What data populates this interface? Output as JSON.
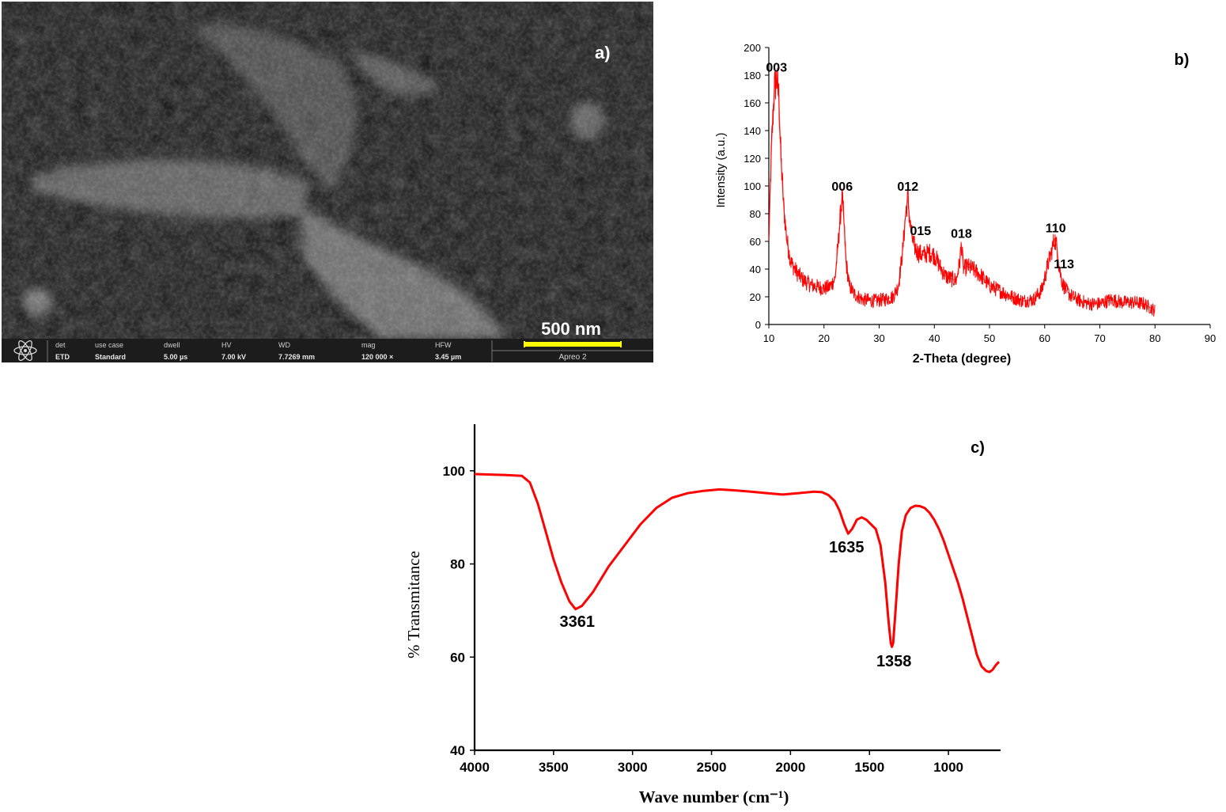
{
  "panels": {
    "a_label": "a)",
    "b_label": "b)",
    "c_label": "c)"
  },
  "sem": {
    "scale_bar": "500 nm",
    "info_headers": [
      "det",
      "use case",
      "dwell",
      "HV",
      "WD",
      "mag",
      "HFW"
    ],
    "info_values": [
      "ETD",
      "Standard",
      "5.00 µs",
      "7.00 kV",
      "7.7269 mm",
      "120 000 ×",
      "3.45 µm"
    ],
    "instrument": "Apreo 2",
    "colors": {
      "bar": "#ffff00",
      "info_bg": "#1c1c1c",
      "info_text": "#d8d8d8"
    }
  },
  "chart_data": [
    {
      "type": "line",
      "panel": "b)",
      "xlabel": "2-Theta (degree)",
      "ylabel": "Intensity (a.u.)",
      "xlim": [
        10,
        90
      ],
      "ylim": [
        0,
        200
      ],
      "xticks": [
        10,
        20,
        30,
        40,
        50,
        60,
        70,
        80,
        90
      ],
      "yticks": [
        0,
        20,
        40,
        60,
        80,
        100,
        120,
        140,
        160,
        180,
        200
      ],
      "grid": false,
      "color": "#ff0000",
      "noisy": true,
      "x": [
        10.0,
        10.5,
        11.0,
        11.4,
        11.8,
        12.2,
        12.7,
        13.3,
        14.0,
        15.0,
        16.0,
        17.0,
        18.0,
        19.0,
        20.0,
        21.0,
        22.0,
        22.6,
        23.0,
        23.3,
        23.6,
        24.0,
        24.6,
        25.5,
        27.0,
        29.0,
        31.0,
        32.5,
        33.5,
        34.3,
        34.8,
        35.2,
        35.6,
        36.2,
        37.0,
        38.0,
        39.0,
        40.0,
        41.0,
        42.0,
        43.0,
        44.0,
        44.6,
        44.9,
        45.3,
        46.0,
        47.0,
        48.5,
        50.0,
        52.0,
        54.0,
        56.0,
        58.0,
        59.5,
        60.5,
        61.2,
        61.8,
        62.2,
        62.6,
        63.2,
        64.0,
        65.0,
        66.5,
        68.0,
        70.0,
        72.0,
        74.0,
        76.0,
        78.0,
        80.0
      ],
      "y": [
        60,
        130,
        170,
        178,
        165,
        120,
        85,
        60,
        45,
        38,
        33,
        30,
        28,
        27,
        26,
        27,
        33,
        60,
        80,
        92,
        75,
        45,
        28,
        22,
        18,
        17,
        18,
        20,
        28,
        55,
        80,
        92,
        72,
        58,
        52,
        50,
        52,
        50,
        42,
        35,
        33,
        32,
        45,
        58,
        40,
        42,
        40,
        35,
        28,
        24,
        20,
        17,
        18,
        25,
        42,
        52,
        62,
        56,
        42,
        30,
        24,
        20,
        17,
        15,
        15,
        18,
        16,
        16,
        15,
        10
      ],
      "peak_labels": [
        {
          "text": "003",
          "x": 11.4,
          "y": 178
        },
        {
          "text": "006",
          "x": 23.3,
          "y": 92
        },
        {
          "text": "012",
          "x": 35.2,
          "y": 92
        },
        {
          "text": "015",
          "x": 37.5,
          "y": 60
        },
        {
          "text": "018",
          "x": 44.9,
          "y": 58
        },
        {
          "text": "110",
          "x": 62.0,
          "y": 62
        },
        {
          "text": "113",
          "x": 63.5,
          "y": 36
        }
      ]
    },
    {
      "type": "line",
      "panel": "c)",
      "xlabel": "Wave number (cm⁻¹)",
      "ylabel": "% Transmitance",
      "xlim": [
        4000,
        670
      ],
      "ylim": [
        40,
        110
      ],
      "xticks": [
        4000,
        3500,
        3000,
        2500,
        2000,
        1500,
        1000
      ],
      "yticks": [
        40,
        60,
        80,
        100
      ],
      "grid": false,
      "color": "#ff0000",
      "x": [
        4000,
        3900,
        3800,
        3700,
        3650,
        3600,
        3550,
        3500,
        3450,
        3400,
        3361,
        3320,
        3250,
        3150,
        3050,
        2950,
        2850,
        2750,
        2650,
        2550,
        2450,
        2350,
        2250,
        2150,
        2050,
        1950,
        1850,
        1800,
        1760,
        1720,
        1690,
        1660,
        1635,
        1610,
        1580,
        1550,
        1520,
        1490,
        1460,
        1430,
        1400,
        1380,
        1365,
        1358,
        1350,
        1335,
        1315,
        1295,
        1270,
        1240,
        1210,
        1180,
        1150,
        1120,
        1090,
        1060,
        1030,
        1000,
        970,
        940,
        910,
        880,
        850,
        820,
        790,
        760,
        740,
        720,
        700,
        680
      ],
      "y": [
        99.3,
        99.2,
        99.1,
        98.9,
        97.5,
        93,
        87,
        81,
        76,
        72,
        70.3,
        71,
        74,
        79.5,
        84,
        88.5,
        92,
        94.2,
        95.2,
        95.7,
        96,
        95.8,
        95.5,
        95.2,
        94.9,
        95.2,
        95.5,
        95.4,
        94.8,
        93.5,
        91.5,
        88.5,
        86.5,
        87.5,
        89.5,
        90,
        89.5,
        88.5,
        87.5,
        84,
        76,
        68,
        63,
        62.2,
        63,
        70,
        80,
        87,
        90.5,
        92,
        92.5,
        92.4,
        92,
        91,
        89.5,
        87.5,
        85,
        82,
        79,
        76,
        72.5,
        68.5,
        64.5,
        60.5,
        58,
        57,
        56.8,
        57.3,
        58.3,
        59
      ]
    }
  ],
  "ftir_labels": [
    {
      "text": "3361",
      "x": 3350,
      "y": 66.5
    },
    {
      "text": "1635",
      "x": 1645,
      "y": 82.5
    },
    {
      "text": "1358",
      "x": 1345,
      "y": 58
    }
  ]
}
